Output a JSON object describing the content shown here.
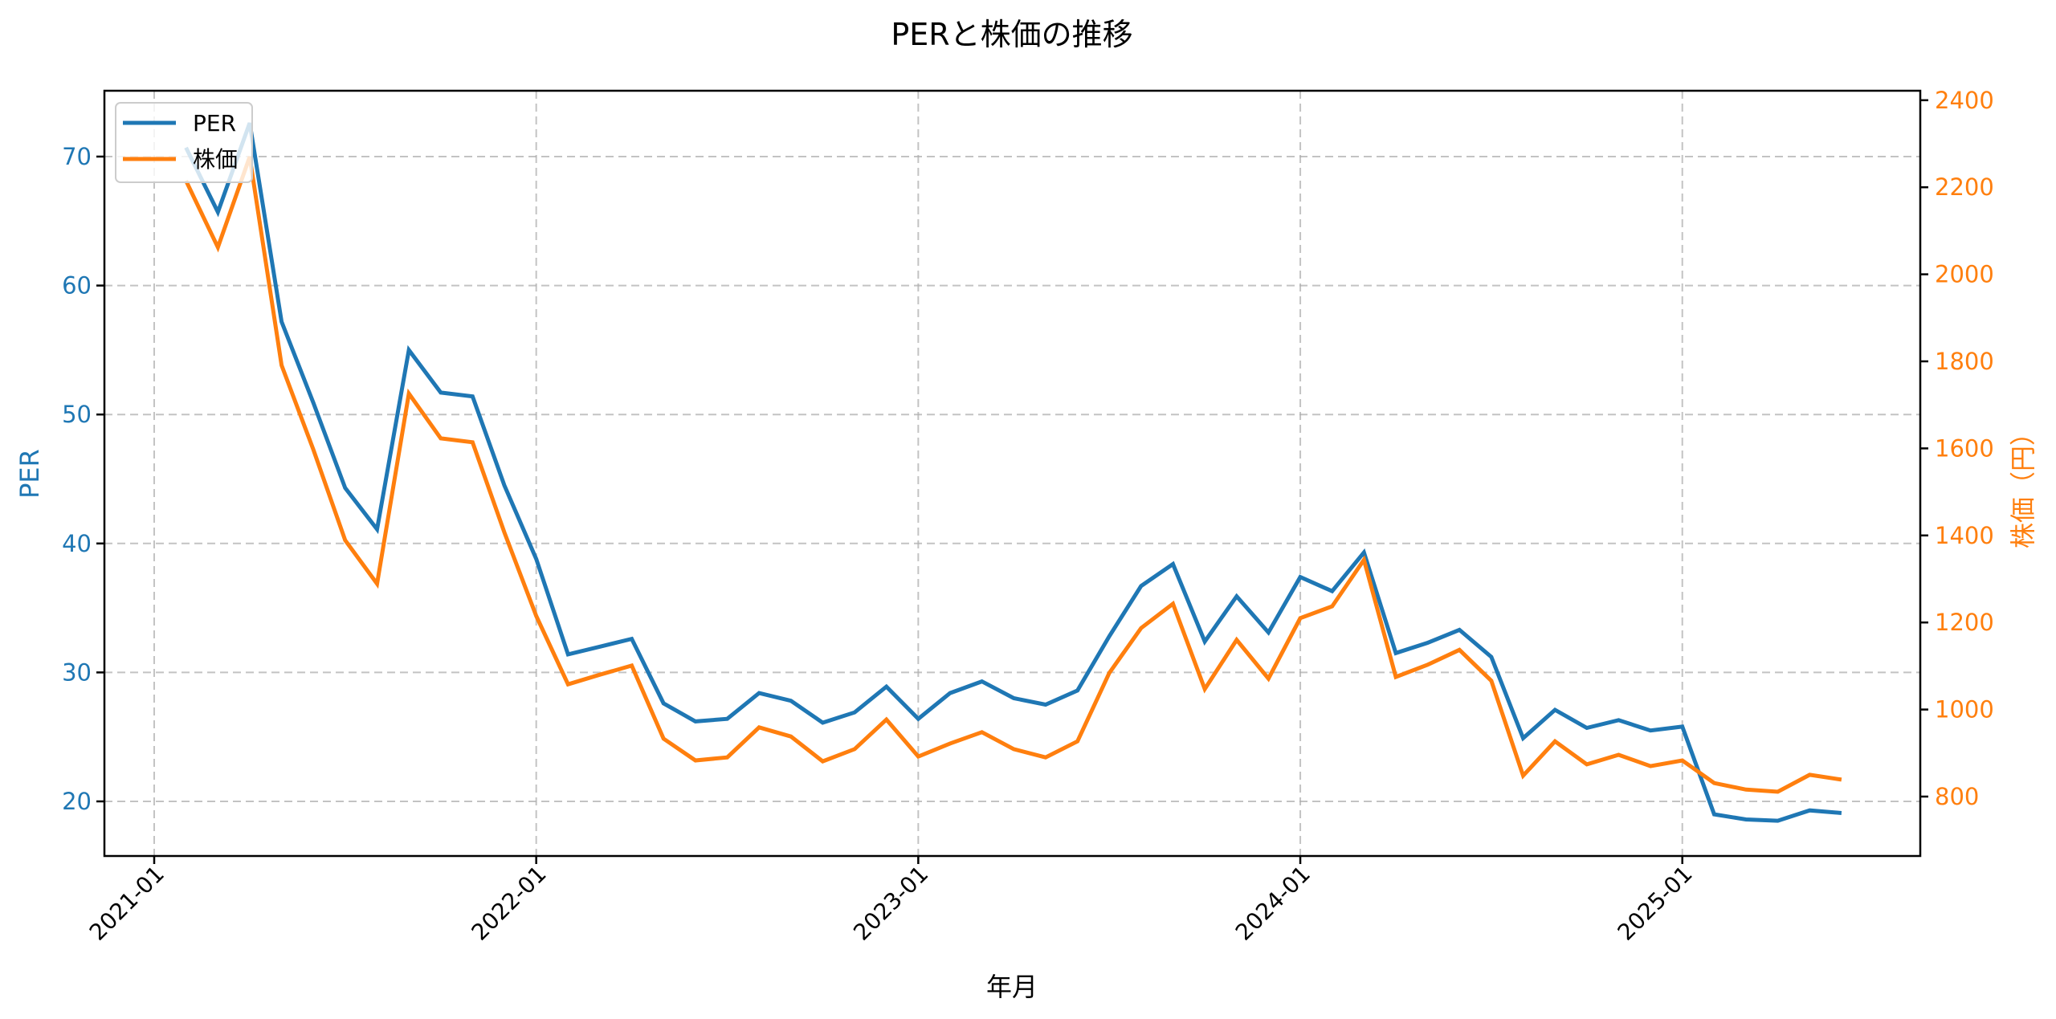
{
  "chart_data": {
    "type": "line",
    "title": "PERと株価の推移",
    "xlabel": "年月",
    "ylabel_left": "PER",
    "ylabel_right": "株価（円）",
    "x_tick_labels": [
      "2021-01",
      "2022-01",
      "2023-01",
      "2024-01",
      "2025-01"
    ],
    "y_left_ticks": [
      20,
      30,
      40,
      50,
      60,
      70
    ],
    "y_right_ticks": [
      800,
      1000,
      1200,
      1400,
      1600,
      1800,
      2000,
      2200,
      2400
    ],
    "ylim_left": [
      15.8,
      75.1
    ],
    "ylim_right": [
      663,
      2422
    ],
    "grid": true,
    "legend_position": "upper left",
    "x": [
      "2021-02",
      "2021-03",
      "2021-04",
      "2021-05",
      "2021-06",
      "2021-07",
      "2021-08",
      "2021-09",
      "2021-10",
      "2021-11",
      "2021-12",
      "2022-01",
      "2022-02",
      "2022-03",
      "2022-04",
      "2022-05",
      "2022-06",
      "2022-07",
      "2022-08",
      "2022-09",
      "2022-10",
      "2022-11",
      "2022-12",
      "2023-01",
      "2023-02",
      "2023-03",
      "2023-04",
      "2023-05",
      "2023-06",
      "2023-07",
      "2023-08",
      "2023-09",
      "2023-10",
      "2023-11",
      "2023-12",
      "2024-01",
      "2024-02",
      "2024-03",
      "2024-04",
      "2024-05",
      "2024-06",
      "2024-07",
      "2024-08",
      "2024-09",
      "2024-10",
      "2024-11",
      "2024-12",
      "2025-01",
      "2025-02",
      "2025-03",
      "2025-04",
      "2025-05",
      "2025-06"
    ],
    "series": [
      {
        "name": "PER",
        "axis": "left",
        "color": "#1f77b4",
        "values": [
          70.7,
          65.7,
          72.6,
          57.2,
          50.9,
          44.3,
          41.1,
          55.0,
          51.7,
          51.4,
          44.5,
          38.8,
          31.4,
          32.0,
          32.6,
          27.6,
          26.2,
          26.4,
          28.4,
          27.8,
          26.1,
          26.9,
          28.9,
          26.4,
          28.4,
          29.3,
          28.0,
          27.5,
          28.6,
          32.8,
          36.7,
          38.4,
          32.4,
          35.9,
          33.1,
          37.4,
          36.3,
          39.3,
          31.5,
          32.3,
          33.3,
          31.2,
          24.9,
          27.1,
          25.7,
          26.3,
          25.5,
          25.8,
          19.0,
          18.6,
          18.5,
          19.3,
          19.1
        ]
      },
      {
        "name": "株価",
        "axis": "right",
        "color": "#ff7f0e",
        "values": [
          2215,
          2062,
          2270,
          1791,
          1597,
          1389,
          1289,
          1726,
          1623,
          1614,
          1407,
          1215,
          1058,
          1080,
          1101,
          933,
          883,
          890,
          959,
          938,
          881,
          909,
          977,
          892,
          922,
          948,
          909,
          890,
          927,
          1084,
          1187,
          1243,
          1047,
          1160,
          1071,
          1210,
          1237,
          1344,
          1075,
          1103,
          1137,
          1066,
          848,
          927,
          874,
          896,
          870,
          883,
          831,
          816,
          811,
          850,
          839
        ]
      }
    ]
  },
  "legend": {
    "items": [
      {
        "label": "PER",
        "color": "#1f77b4"
      },
      {
        "label": "株価",
        "color": "#ff7f0e"
      }
    ]
  },
  "colors": {
    "per": "#1f77b4",
    "price": "#ff7f0e",
    "grid": "#b0b0b0",
    "axis": "#000000"
  }
}
